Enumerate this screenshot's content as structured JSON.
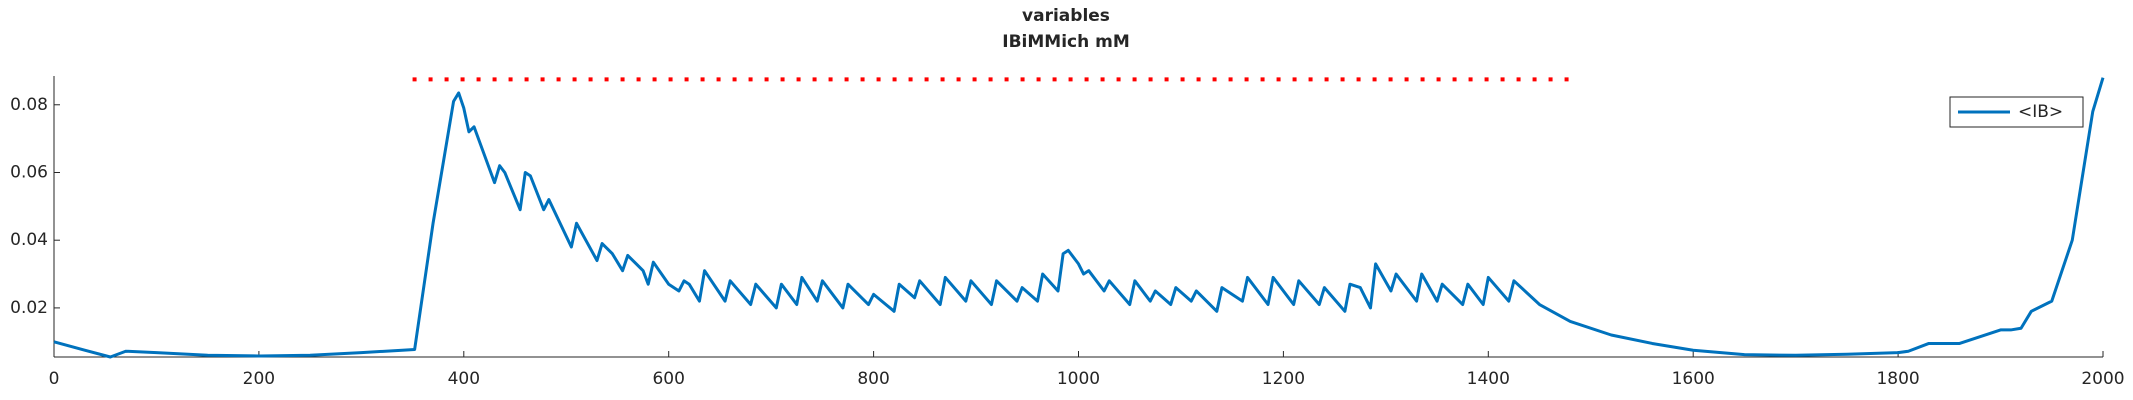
{
  "chart_data": {
    "type": "line",
    "title": "variables",
    "subtitle": "IBiMMich mM",
    "xlim": [
      0,
      2000
    ],
    "ylim": [
      0.0055,
      0.0885
    ],
    "xticks": [
      0,
      200,
      400,
      600,
      800,
      1000,
      1200,
      1400,
      1600,
      1800,
      2000
    ],
    "yticks": [
      0.02,
      0.04,
      0.06,
      0.08
    ],
    "legend": "top-right",
    "series": [
      {
        "name": "<IB>",
        "color": "#0072bd",
        "style": "solid",
        "x": [
          0,
          30,
          55,
          70,
          100,
          150,
          200,
          250,
          300,
          340,
          352,
          370,
          380,
          390,
          395,
          400,
          405,
          410,
          430,
          435,
          440,
          455,
          460,
          465,
          478,
          483,
          505,
          510,
          530,
          535,
          545,
          555,
          560,
          575,
          580,
          585,
          600,
          610,
          615,
          620,
          630,
          635,
          655,
          660,
          680,
          685,
          705,
          710,
          725,
          730,
          745,
          750,
          770,
          775,
          795,
          800,
          820,
          825,
          840,
          845,
          865,
          870,
          890,
          895,
          915,
          920,
          940,
          945,
          960,
          965,
          980,
          985,
          990,
          1000,
          1005,
          1010,
          1025,
          1030,
          1050,
          1055,
          1070,
          1075,
          1090,
          1095,
          1110,
          1115,
          1135,
          1140,
          1160,
          1165,
          1185,
          1190,
          1210,
          1215,
          1235,
          1240,
          1260,
          1265,
          1275,
          1285,
          1290,
          1305,
          1310,
          1330,
          1335,
          1350,
          1355,
          1375,
          1380,
          1395,
          1400,
          1420,
          1425,
          1450,
          1480,
          1520,
          1560,
          1600,
          1650,
          1700,
          1750,
          1800,
          1810,
          1830,
          1860,
          1880,
          1900,
          1910,
          1920,
          1930,
          1950,
          1970,
          1990,
          2000
        ],
        "values": [
          0.01,
          0.0075,
          0.0055,
          0.0072,
          0.0068,
          0.006,
          0.0058,
          0.006,
          0.0068,
          0.0075,
          0.0077,
          0.045,
          0.063,
          0.081,
          0.0835,
          0.079,
          0.072,
          0.0735,
          0.057,
          0.062,
          0.06,
          0.049,
          0.06,
          0.059,
          0.049,
          0.052,
          0.038,
          0.045,
          0.034,
          0.039,
          0.036,
          0.031,
          0.0355,
          0.031,
          0.027,
          0.0335,
          0.027,
          0.025,
          0.028,
          0.027,
          0.022,
          0.031,
          0.022,
          0.028,
          0.021,
          0.027,
          0.02,
          0.027,
          0.021,
          0.029,
          0.022,
          0.028,
          0.02,
          0.027,
          0.021,
          0.024,
          0.019,
          0.027,
          0.023,
          0.028,
          0.021,
          0.029,
          0.022,
          0.028,
          0.021,
          0.028,
          0.022,
          0.026,
          0.022,
          0.03,
          0.025,
          0.036,
          0.037,
          0.033,
          0.03,
          0.031,
          0.025,
          0.028,
          0.021,
          0.028,
          0.022,
          0.025,
          0.021,
          0.026,
          0.022,
          0.025,
          0.019,
          0.026,
          0.022,
          0.029,
          0.021,
          0.029,
          0.021,
          0.028,
          0.021,
          0.026,
          0.019,
          0.027,
          0.026,
          0.02,
          0.033,
          0.025,
          0.03,
          0.022,
          0.03,
          0.022,
          0.027,
          0.021,
          0.027,
          0.021,
          0.029,
          0.022,
          0.028,
          0.021,
          0.016,
          0.012,
          0.0095,
          0.0075,
          0.0062,
          0.006,
          0.0063,
          0.0068,
          0.0072,
          0.0095,
          0.0095,
          0.0115,
          0.0135,
          0.0135,
          0.014,
          0.019,
          0.022,
          0.04,
          0.078,
          0.088
        ]
      },
      {
        "color": "#ff0000",
        "style": "dotted",
        "x": [
          350,
          1480
        ],
        "values": [
          0.0875,
          0.0875
        ]
      }
    ]
  }
}
